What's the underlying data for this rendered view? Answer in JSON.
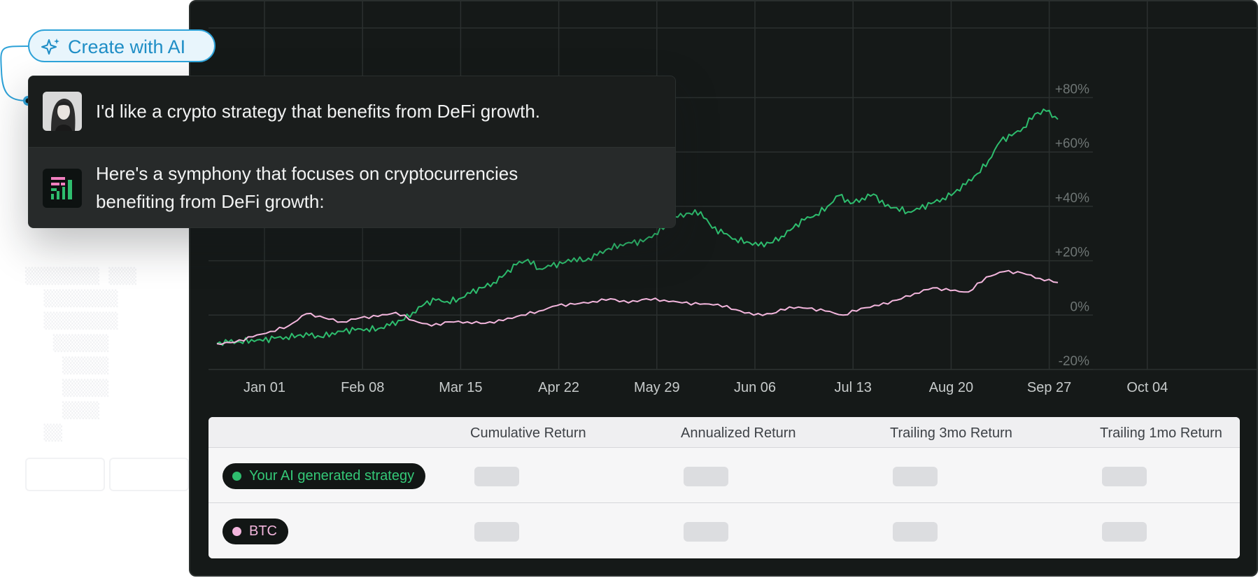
{
  "create_button": {
    "label": "Create with AI",
    "icon": "sparkle-icon",
    "color": "#1f8ec6"
  },
  "chat": {
    "user_message": "I'd like a crypto strategy that benefits from DeFi growth.",
    "ai_message_line1": "Here's a symphony that focuses on cryptocurrencies",
    "ai_message_line2": "benefiting from DeFi growth:"
  },
  "chart_data": {
    "type": "line",
    "x_ticks": [
      "Jan 01",
      "Feb 08",
      "Mar 15",
      "Apr 22",
      "May 29",
      "Jun 06",
      "Jul 13",
      "Aug 20",
      "Sep 27",
      "Oct 04"
    ],
    "y_ticks": [
      "+80%",
      "+60%",
      "+40%",
      "+20%",
      "0%",
      "-20%"
    ],
    "ylim": [
      -20,
      80
    ],
    "series": [
      {
        "name": "Your AI generated strategy",
        "color": "#2ebd6e",
        "values": [
          -10.5,
          -10,
          -9.8,
          -9,
          -9.5,
          -8.5,
          -8,
          -7.5,
          -7.5,
          -8,
          -6.5,
          -6,
          -5.5,
          -5,
          -5,
          -3.8,
          -2,
          1,
          4,
          5.5,
          5,
          6,
          8,
          10,
          12,
          15,
          18.5,
          20.5,
          17,
          18,
          19,
          21,
          20,
          22,
          24.5,
          26,
          26.5,
          27,
          30,
          33,
          36,
          37.5,
          38,
          32,
          30,
          28,
          27,
          25.5,
          26.5,
          29,
          32,
          35,
          37,
          40,
          44,
          41,
          43,
          44.5,
          40,
          39.5,
          38,
          39,
          41,
          43,
          45,
          48,
          52,
          57,
          64,
          66,
          69,
          74,
          75,
          72
        ]
      },
      {
        "name": "BTC",
        "color": "#f3b6dd",
        "values": [
          -10.5,
          -10,
          -8,
          -6,
          -4,
          0.5,
          -1,
          -2.5,
          -1,
          -0.5,
          1,
          -2,
          -4,
          -2.5,
          -2.5,
          -3,
          -2,
          0,
          1.5,
          3.5,
          4,
          5,
          6,
          4.5,
          6,
          5.5,
          4.5,
          4,
          4,
          2,
          0,
          0.5,
          3,
          2.5,
          1.5,
          0,
          2.5,
          3.5,
          5.5,
          8,
          10,
          9,
          8.5,
          14,
          16,
          15.5,
          13.5,
          12
        ]
      }
    ]
  },
  "table": {
    "columns": [
      "Cumulative Return",
      "Annualized Return",
      "Trailing 3mo Return",
      "Trailing 1mo Return"
    ],
    "rows": [
      {
        "label": "Your AI generated strategy",
        "dot_color": "#2ebd6e",
        "text_color": "#34c877"
      },
      {
        "label": "BTC",
        "dot_color": "#f3b6dd",
        "text_color": "#f3b6dd"
      }
    ]
  }
}
